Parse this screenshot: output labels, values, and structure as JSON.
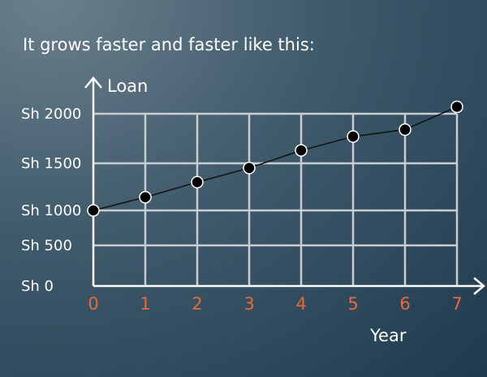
{
  "caption": "It grows faster and faster like this:",
  "chart_data": {
    "type": "line",
    "title": "",
    "xlabel": "Year",
    "ylabel": "Loan",
    "x": [
      0,
      1,
      2,
      3,
      4,
      5,
      6,
      7
    ],
    "series": [
      {
        "values": [
          1000,
          1140,
          1300,
          1450,
          1630,
          1770,
          1840,
          2070
        ]
      }
    ],
    "xlim": [
      0,
      7
    ],
    "ylim": [
      0,
      2100
    ],
    "y_ticks": [
      0,
      500,
      1000,
      1500,
      2000
    ],
    "y_tick_labels": [
      "Sh 0",
      "Sh 500",
      "Sh 1000",
      "Sh 1500",
      "Sh 2000"
    ],
    "x_tick_labels": [
      "0",
      "1",
      "2",
      "3",
      "4",
      "5",
      "6",
      "7"
    ],
    "grid": true,
    "colors": {
      "grid": "#c8cdd2",
      "axis": "#ffffff",
      "line": "#111111",
      "marker_fill": "#000000",
      "marker_stroke": "#ffffff",
      "x_tick_text": "#e86a3c"
    }
  }
}
